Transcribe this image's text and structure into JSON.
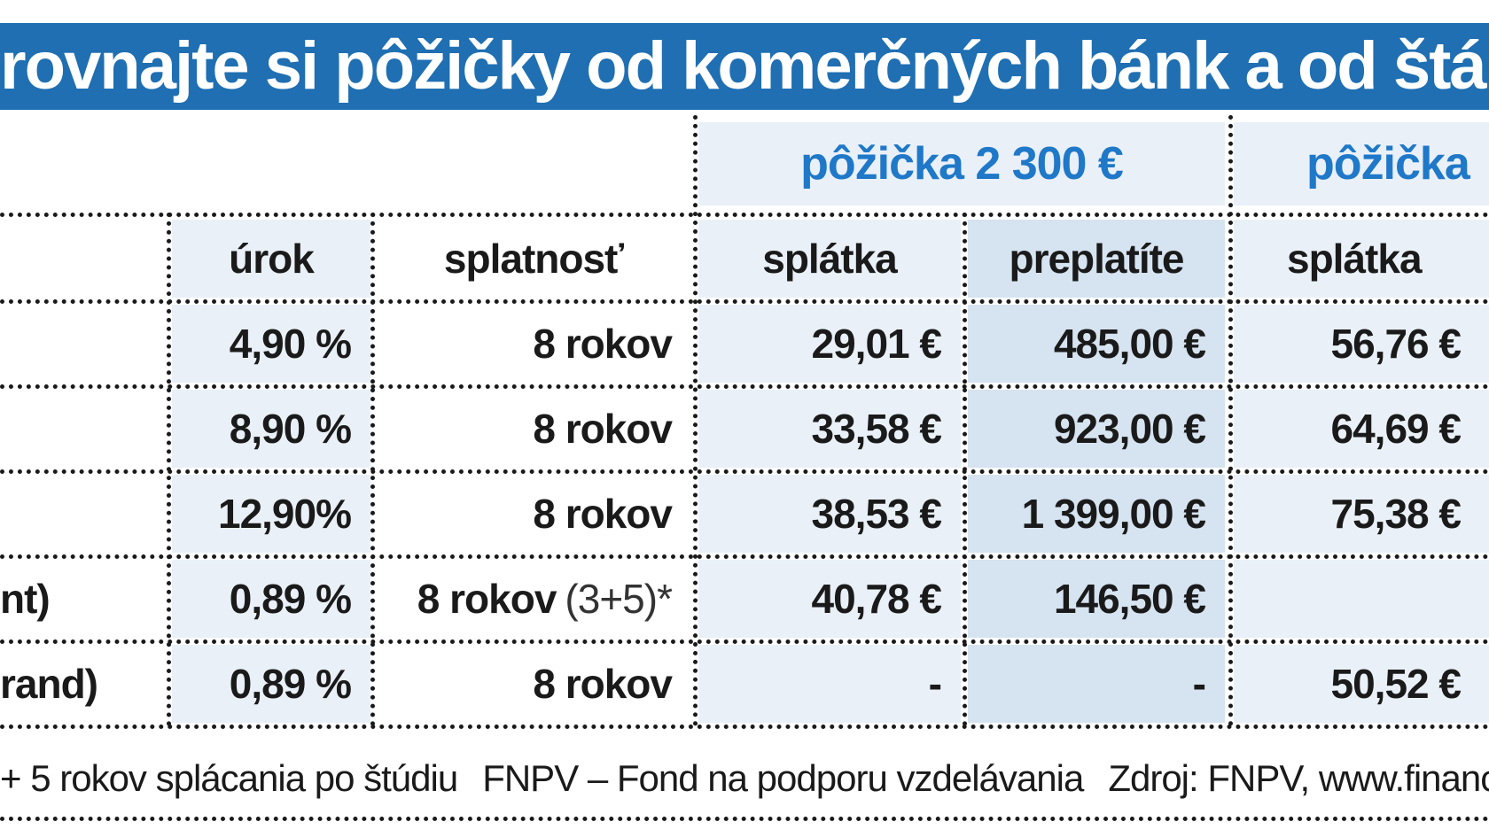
{
  "title": "rovnajte si pôžičky od komerčných bánk a od štá",
  "groups": {
    "g1": "pôžička 2 300 €",
    "g2": "pôžička"
  },
  "headers": {
    "urok": "úrok",
    "splatnost": "splatnosť",
    "splatka1": "splátka",
    "preplatite": "preplatíte",
    "splatka2": "splátka"
  },
  "rows": [
    {
      "label": "",
      "urok": "4,90 %",
      "splatnost": "8 rokov",
      "splatnost_extra": "",
      "splatka1": "29,01 €",
      "preplatite": "485,00 €",
      "splatka2": "56,76 €"
    },
    {
      "label": "",
      "urok": "8,90 %",
      "splatnost": "8 rokov",
      "splatnost_extra": "",
      "splatka1": "33,58 €",
      "preplatite": "923,00 €",
      "splatka2": "64,69 €"
    },
    {
      "label": "",
      "urok": "12,90%",
      "splatnost": "8 rokov",
      "splatnost_extra": "",
      "splatka1": "38,53 €",
      "preplatite": "1 399,00 €",
      "splatka2": "75,38 €"
    },
    {
      "label": "nt)",
      "urok": "0,89 %",
      "splatnost": "8 rokov",
      "splatnost_extra": "(3+5)*",
      "splatka1": "40,78 €",
      "preplatite": "146,50 €",
      "splatka2": ""
    },
    {
      "label": "rand)",
      "urok": "0,89 %",
      "splatnost": "8 rokov",
      "splatnost_extra": "",
      "splatka1": "-",
      "preplatite": "-",
      "splatka2": "50,52 €"
    }
  ],
  "footer": {
    "part1": "+ 5 rokov splácania po štúdiu",
    "part2": "FNPV – Fond na podporu vzdelávania",
    "part3": "Zdroj: FNPV, www.financ"
  },
  "colors": {
    "title_bg": "#1f6fb2",
    "group_text": "#1f78c8",
    "shade_light": "#e9f0f8",
    "shade_dark": "#d6e3f0"
  }
}
